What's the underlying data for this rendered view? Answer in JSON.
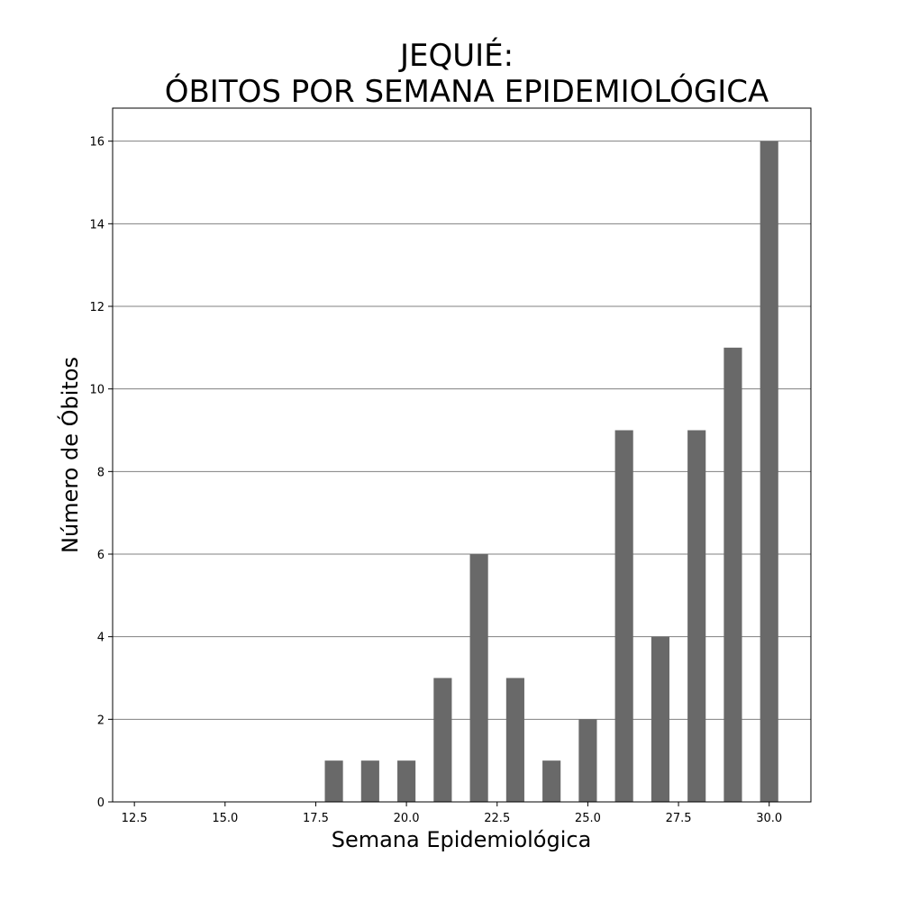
{
  "chart_data": {
    "type": "bar",
    "title_line1": "JEQUIÉ:",
    "title_line2": "ÓBITOS POR SEMANA EPIDEMIOLÓGICA",
    "xlabel": "Semana Epidemiológica",
    "ylabel": "Número de Óbitos",
    "x": [
      18,
      19,
      20,
      21,
      22,
      23,
      24,
      25,
      26,
      27,
      28,
      29,
      30
    ],
    "values": [
      1,
      1,
      1,
      3,
      6,
      3,
      1,
      2,
      9,
      4,
      9,
      11,
      16
    ],
    "bar_width": 0.5,
    "xlim": [
      11.9,
      31.15
    ],
    "ylim": [
      0,
      16.8
    ],
    "x_ticks": [
      12.5,
      15.0,
      17.5,
      20.0,
      22.5,
      25.0,
      27.5,
      30.0
    ],
    "x_tick_labels": [
      "12.5",
      "15.0",
      "17.5",
      "20.0",
      "22.5",
      "25.0",
      "27.5",
      "30.0"
    ],
    "y_ticks": [
      0,
      2,
      4,
      6,
      8,
      10,
      12,
      14,
      16
    ],
    "y_tick_labels": [
      "0",
      "2",
      "4",
      "6",
      "8",
      "10",
      "12",
      "14",
      "16"
    ],
    "grid": "horizontal",
    "bar_color": "#696969",
    "grid_color": "#808080"
  }
}
